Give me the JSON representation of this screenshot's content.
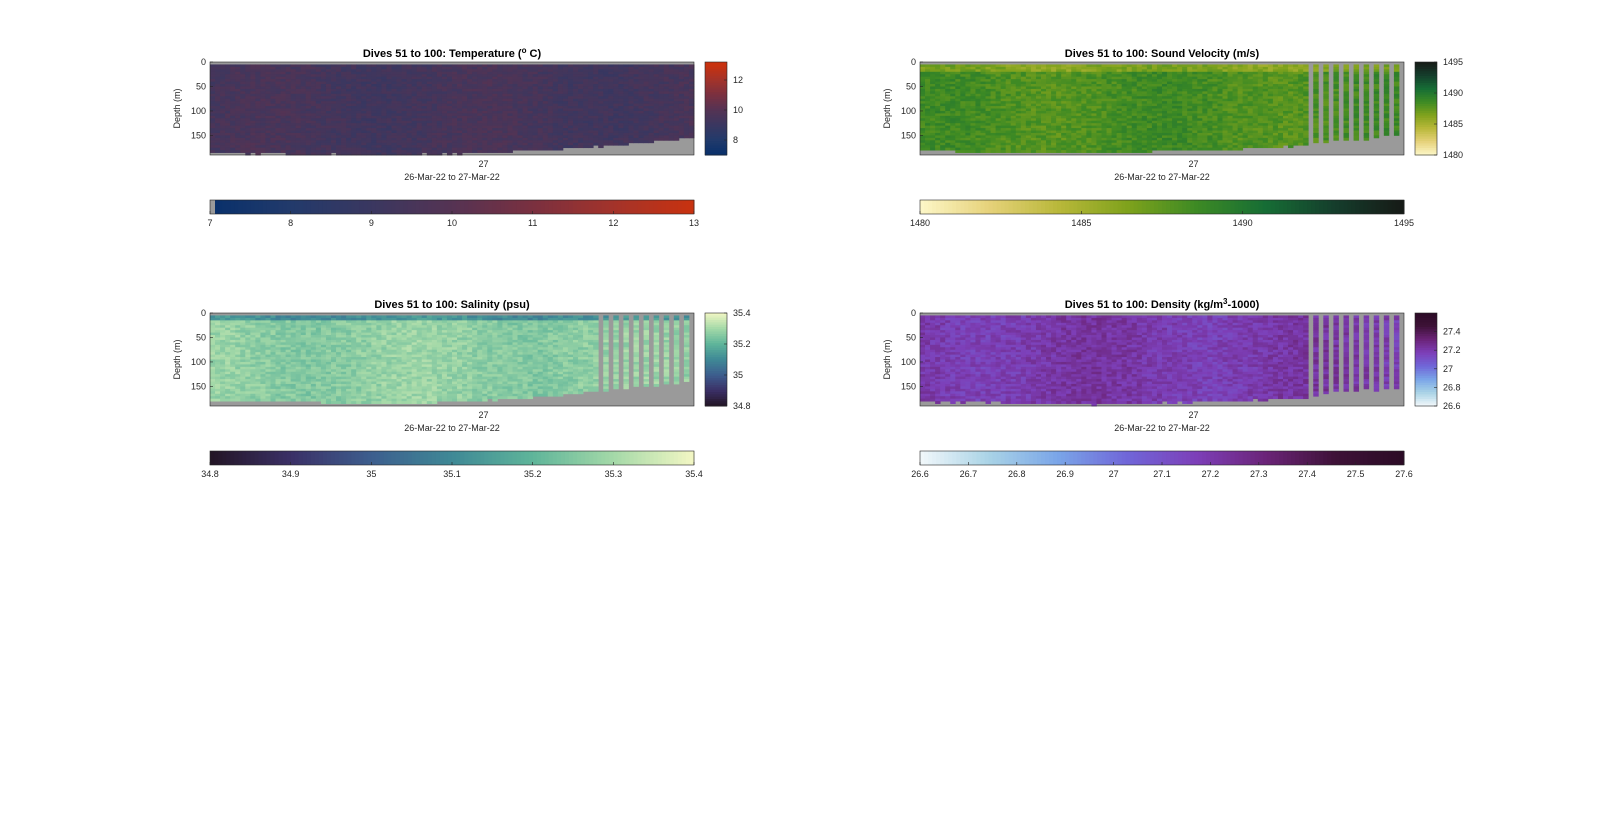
{
  "figure": {
    "background": "#ffffff",
    "missing_color": "#9a9a9a"
  },
  "chart_data": [
    {
      "type": "heatmap",
      "id": "temperature",
      "title": "Dives 51 to 100: Temperature (",
      "title_sup": "o",
      "title_end": " C)",
      "ylabel": "Depth (m)",
      "y_ticks": [
        "0",
        "50",
        "100",
        "150"
      ],
      "y_tick_values": [
        0,
        50,
        100,
        150
      ],
      "ylim": [
        0,
        190
      ],
      "y_reversed": true,
      "x_tick_label": "27",
      "xlabel": "26-Mar-22 to 27-Mar-22",
      "side_colorbar_ticks": [
        "12",
        "10",
        "8"
      ],
      "side_colorbar_values": [
        12,
        10,
        8
      ],
      "side_colorbar_range": [
        7.0,
        13.2
      ],
      "colorbar_ticks": [
        "7",
        "8",
        "9",
        "10",
        "11",
        "12",
        "13"
      ],
      "colorbar_values": [
        7,
        8,
        9,
        10,
        11,
        12,
        13
      ],
      "clim": [
        7,
        13
      ],
      "colormap": [
        "#08306b",
        "#223a6b",
        "#3a3760",
        "#553353",
        "#7a3040",
        "#a3332a",
        "#c9320f"
      ],
      "typical_value": 9.4,
      "sparse_after_fraction": 0.0,
      "bottom_depth_profile": [
        182,
        183,
        184,
        184,
        185,
        186,
        186,
        187,
        187,
        186,
        186,
        185,
        184,
        183,
        182,
        180,
        178,
        176,
        173,
        170,
        167,
        164,
        160,
        156,
        152
      ]
    },
    {
      "type": "heatmap",
      "id": "sound_velocity",
      "title": "Dives 51 to 100: Sound Velocity (m/s)",
      "title_sup": "",
      "title_end": "",
      "ylabel": "Depth (m)",
      "y_ticks": [
        "0",
        "50",
        "100",
        "150"
      ],
      "y_tick_values": [
        0,
        50,
        100,
        150
      ],
      "ylim": [
        0,
        190
      ],
      "y_reversed": true,
      "x_tick_label": "27",
      "xlabel": "26-Mar-22 to 27-Mar-22",
      "side_colorbar_ticks": [
        "1495",
        "1490",
        "1485",
        "1480"
      ],
      "side_colorbar_values": [
        1495,
        1490,
        1485,
        1480
      ],
      "side_colorbar_range": [
        1480,
        1495
      ],
      "colorbar_ticks": [
        "1480",
        "1485",
        "1490",
        "1495"
      ],
      "colorbar_values": [
        1480,
        1485,
        1490,
        1495
      ],
      "clim": [
        1480,
        1495
      ],
      "colormap": [
        "#fdf7c8",
        "#e6d27a",
        "#b9b83a",
        "#7fa21c",
        "#3d8a24",
        "#166d35",
        "#153d2c",
        "#161a16"
      ],
      "typical_value": 1488.2,
      "sparse_after_fraction": 0.8,
      "bottom_depth_profile": [
        178,
        179,
        181,
        182,
        182,
        183,
        183,
        182,
        182,
        181,
        181,
        180,
        179,
        178,
        177,
        176,
        174,
        172,
        170,
        168,
        160,
        158,
        155,
        150,
        145
      ]
    },
    {
      "type": "heatmap",
      "id": "salinity",
      "title": "Dives 51 to 100: Salinity (psu)",
      "title_sup": "",
      "title_end": "",
      "ylabel": "Depth (m)",
      "y_ticks": [
        "0",
        "50",
        "100",
        "150"
      ],
      "y_tick_values": [
        0,
        50,
        100,
        150
      ],
      "ylim": [
        0,
        190
      ],
      "y_reversed": true,
      "x_tick_label": "27",
      "xlabel": "26-Mar-22 to 27-Mar-22",
      "side_colorbar_ticks": [
        "35.4",
        "35.2",
        "35",
        "34.8"
      ],
      "side_colorbar_values": [
        35.4,
        35.2,
        35.0,
        34.8
      ],
      "side_colorbar_range": [
        34.8,
        35.4
      ],
      "colorbar_ticks": [
        "34.8",
        "34.9",
        "35",
        "35.1",
        "35.2",
        "35.3",
        "35.4"
      ],
      "colorbar_values": [
        34.8,
        34.9,
        35.0,
        35.1,
        35.2,
        35.3,
        35.4
      ],
      "clim": [
        34.8,
        35.4
      ],
      "colormap": [
        "#231525",
        "#3b3066",
        "#3d5e8e",
        "#3f8996",
        "#5fb59a",
        "#a4d9a8",
        "#f3f7c4"
      ],
      "typical_value": 35.27,
      "sparse_after_fraction": 0.79,
      "bottom_depth_profile": [
        175,
        176,
        177,
        178,
        179,
        180,
        181,
        181,
        182,
        182,
        181,
        180,
        179,
        177,
        175,
        172,
        169,
        166,
        162,
        158,
        154,
        150,
        146,
        142,
        138
      ]
    },
    {
      "type": "heatmap",
      "id": "density",
      "title": "Dives 51 to 100: Density (kg/m",
      "title_sup": "3",
      "title_end": "-1000)",
      "ylabel": "Depth (m)",
      "y_ticks": [
        "0",
        "50",
        "100",
        "150"
      ],
      "y_tick_values": [
        0,
        50,
        100,
        150
      ],
      "ylim": [
        0,
        190
      ],
      "y_reversed": true,
      "x_tick_label": "27",
      "xlabel": "26-Mar-22 to 27-Mar-22",
      "side_colorbar_ticks": [
        "27.4",
        "27.2",
        "27",
        "26.8",
        "26.6"
      ],
      "side_colorbar_values": [
        27.4,
        27.2,
        27.0,
        26.8,
        26.6
      ],
      "side_colorbar_range": [
        26.6,
        27.6
      ],
      "colorbar_ticks": [
        "26.6",
        "26.7",
        "26.8",
        "26.9",
        "27",
        "27.1",
        "27.2",
        "27.3",
        "27.4",
        "27.5",
        "27.6"
      ],
      "colorbar_values": [
        26.6,
        26.7,
        26.8,
        26.9,
        27.0,
        27.1,
        27.2,
        27.3,
        27.4,
        27.5,
        27.6
      ],
      "clim": [
        26.6,
        27.6
      ],
      "colormap": [
        "#f2f8fb",
        "#a9d3e6",
        "#7aa5e8",
        "#7066d8",
        "#7d3fb8",
        "#6b2478",
        "#3e1238",
        "#2b0b25"
      ],
      "typical_value": 27.2,
      "sparse_after_fraction": 0.8,
      "bottom_depth_profile": [
        178,
        179,
        180,
        181,
        181,
        182,
        183,
        183,
        184,
        184,
        183,
        182,
        181,
        180,
        179,
        178,
        176,
        175,
        173,
        171,
        160,
        158,
        156,
        154,
        152
      ]
    }
  ]
}
